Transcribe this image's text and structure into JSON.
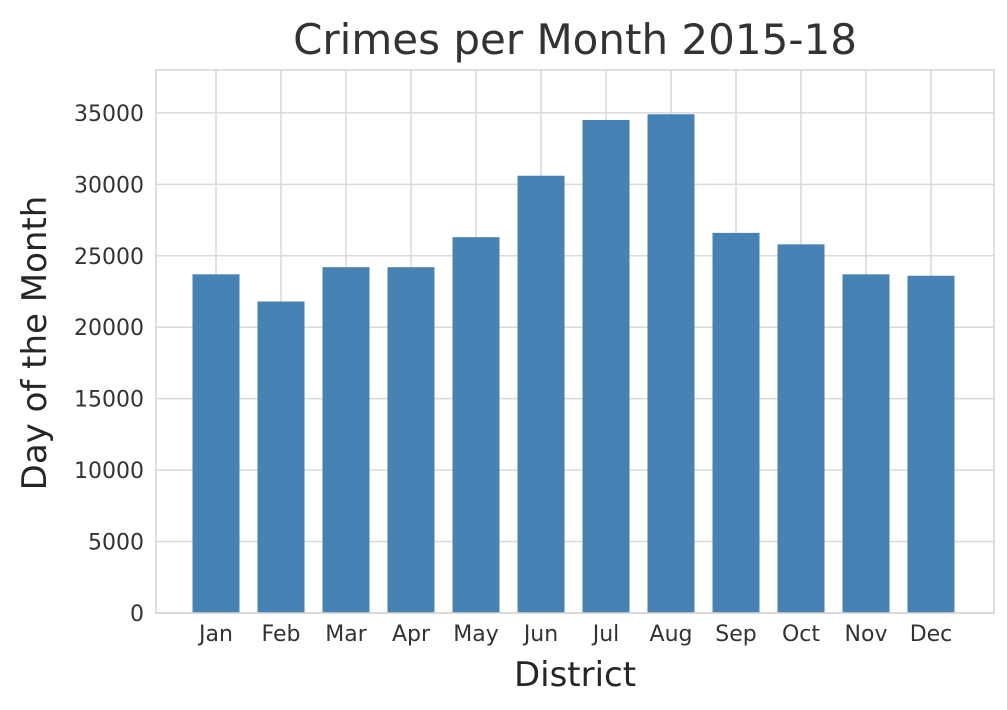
{
  "chart_data": {
    "type": "bar",
    "title": "Crimes per Month 2015-18",
    "xlabel": "District",
    "ylabel": "Day of the Month",
    "categories": [
      "Jan",
      "Feb",
      "Mar",
      "Apr",
      "May",
      "Jun",
      "Jul",
      "Aug",
      "Sep",
      "Oct",
      "Nov",
      "Dec"
    ],
    "values": [
      23700,
      21800,
      24200,
      24200,
      26300,
      30600,
      34500,
      34900,
      26600,
      25800,
      23700,
      23600
    ],
    "ylim": [
      0,
      38000
    ],
    "yticks": [
      0,
      5000,
      10000,
      15000,
      20000,
      25000,
      30000,
      35000
    ],
    "grid": true,
    "bar_color": "#4682b4"
  }
}
